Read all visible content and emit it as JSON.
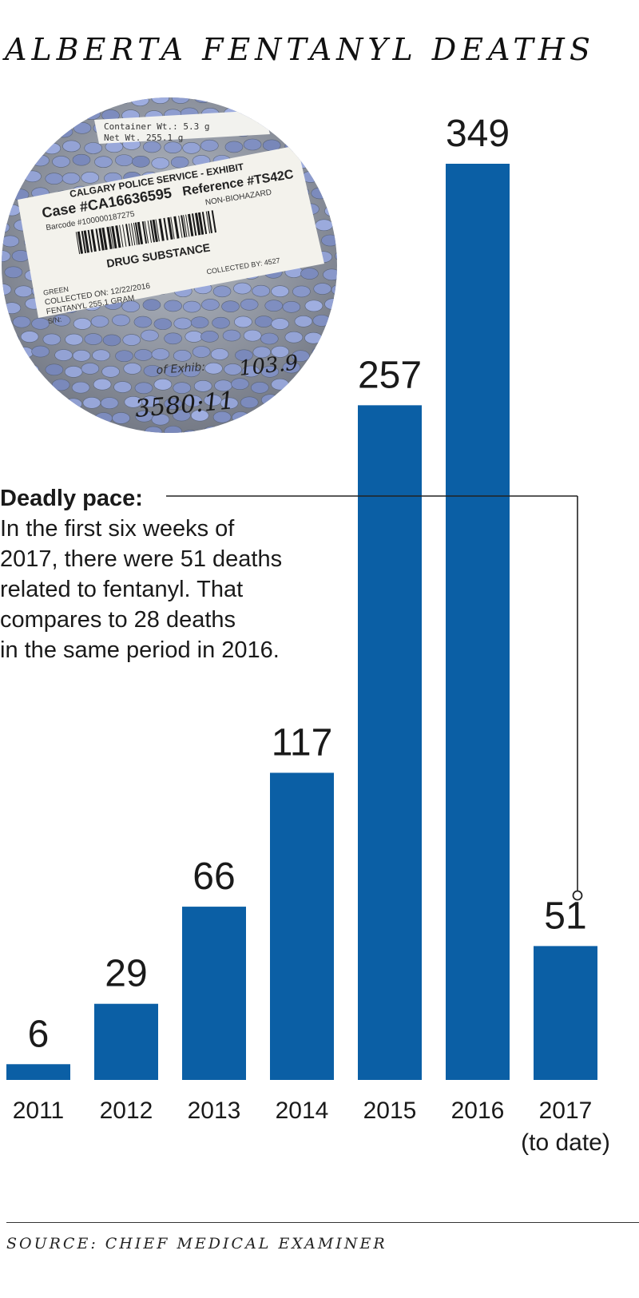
{
  "chart_data": {
    "type": "bar",
    "title": "ALBERTA FENTANYL DEATHS",
    "categories": [
      "2011",
      "2012",
      "2013",
      "2014",
      "2015",
      "2016",
      "2017"
    ],
    "category_notes": [
      "",
      "",
      "",
      "",
      "",
      "",
      "(to date)"
    ],
    "values": [
      6,
      29,
      66,
      117,
      257,
      349,
      51
    ],
    "data_labels": [
      "6",
      "29",
      "66",
      "117",
      "257",
      "349",
      "51"
    ],
    "ylim": [
      0,
      349
    ],
    "grid": false,
    "bar_color": "#0b5fa5"
  },
  "photo": {
    "container_wt": "Container Wt.: 5.3 g",
    "net_wt": "Net Wt.    255.1 g",
    "service": "CALGARY POLICE SERVICE - EXHIBIT",
    "case": "Case #CA16636595",
    "reference": "Reference #TS42C",
    "barcode": "Barcode #100000187275",
    "non_biohazard": "NON-BIOHAZARD",
    "substance": "DRUG SUBSTANCE",
    "green": "GREEN",
    "collected_on": "COLLECTED ON: 12/22/2016",
    "collected_by": "COLLECTED BY: 4527",
    "fentanyl": "FENTANYL  255.1 GRAM",
    "sn": "S/N:",
    "handwritten_1": "103.9",
    "handwritten_2": "3580:11",
    "exhibit_text": "of Exhib:"
  },
  "annotation": {
    "title": "Deadly pace:",
    "lines": [
      "In the first six weeks of",
      "2017, there were 51 deaths",
      "related to fentanyl. That",
      "compares to 28 deaths",
      "in the same period in 2016."
    ]
  },
  "source": "SOURCE: CHIEF MEDICAL EXAMINER"
}
